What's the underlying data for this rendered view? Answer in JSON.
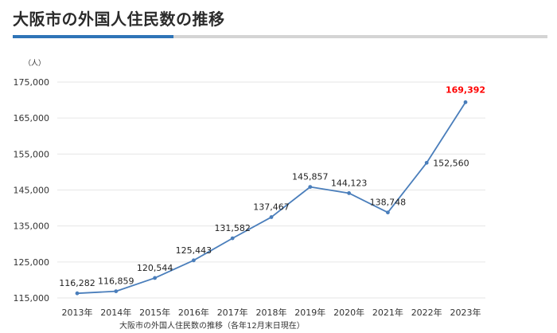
{
  "page": {
    "title": "大阪市の外国人住民数の推移",
    "caption": "大阪市の外国人住民数の推移（各年12月末日現在）",
    "accent_color": "#2f74b7"
  },
  "chart_data": {
    "type": "line",
    "unit_label": "（人）",
    "categories": [
      "2013年",
      "2014年",
      "2015年",
      "2016年",
      "2017年",
      "2018年",
      "2019年",
      "2020年",
      "2021年",
      "2022年",
      "2023年"
    ],
    "series": [
      {
        "values": [
          116282,
          116859,
          120544,
          125443,
          131582,
          137467,
          145857,
          144123,
          138748,
          152560,
          169392
        ],
        "color": "#4a7ebb"
      }
    ],
    "data_labels": [
      "116,282",
      "116,859",
      "120,544",
      "125,443",
      "131,582",
      "137,467",
      "145,857",
      "144,123",
      "138,748",
      "152,560",
      "169,392"
    ],
    "highlight_index": 10,
    "highlight_color": "#ff0000",
    "yticks": [
      115000,
      125000,
      135000,
      145000,
      155000,
      165000,
      175000
    ],
    "ytick_labels": [
      "115,000",
      "125,000",
      "135,000",
      "145,000",
      "155,000",
      "165,000",
      "175,000"
    ],
    "ylim": [
      115000,
      175000
    ],
    "grid": true
  }
}
